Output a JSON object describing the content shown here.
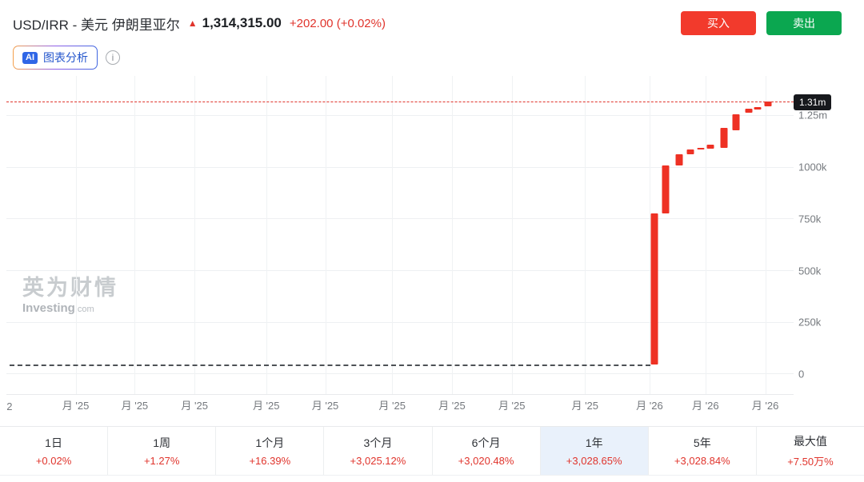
{
  "header": {
    "title": "USD/IRR - 美元 伊朗里亚尔",
    "arrow": "▲",
    "price": "1,314,315.00",
    "change": "+202.00 (+0.02%)",
    "buy_label": "买入",
    "sell_label": "卖出"
  },
  "toolbar": {
    "ai_badge": "AI",
    "ai_label": "图表分析",
    "info_icon": "i"
  },
  "watermark": {
    "cn": "英为财情",
    "en": "Investing",
    "en_suffix": ".com"
  },
  "colors": {
    "accent_red": "#e0342c",
    "buy_red": "#f23a2c",
    "sell_green": "#0ba750",
    "candle_red": "#ee3124",
    "tag_black": "#17191d",
    "selected_tab_blue": "#e9f1fb"
  },
  "chart_data": {
    "type": "candlestick",
    "title": "USD/IRR 1年走势",
    "ylim": [
      -100000,
      1440000
    ],
    "grid": true,
    "y_gridlines": [
      0,
      250000,
      500000,
      750000,
      1000000,
      1250000
    ],
    "y_axis_labels": [
      {
        "text": "1.25m",
        "value": 1250000
      },
      {
        "text": "1000k",
        "value": 1000000
      },
      {
        "text": "750k",
        "value": 750000
      },
      {
        "text": "500k",
        "value": 500000
      },
      {
        "text": "250k",
        "value": 250000
      },
      {
        "text": "0",
        "value": 0
      }
    ],
    "current_price": {
      "value": 1314315,
      "label": "1.31m"
    },
    "baseline": {
      "value": 42000,
      "x_start": 0.004,
      "x_end": 0.818
    },
    "x_ticks": [
      {
        "label": "2",
        "x": 0.004,
        "grid": false
      },
      {
        "label": "月 '25",
        "x": 0.088,
        "grid": true
      },
      {
        "label": "月 '25",
        "x": 0.163,
        "grid": true
      },
      {
        "label": "月 '25",
        "x": 0.239,
        "grid": true
      },
      {
        "label": "月 '25",
        "x": 0.33,
        "grid": true
      },
      {
        "label": "月 '25",
        "x": 0.405,
        "grid": true
      },
      {
        "label": "月 '25",
        "x": 0.49,
        "grid": true
      },
      {
        "label": "月 '25",
        "x": 0.566,
        "grid": true
      },
      {
        "label": "月 '25",
        "x": 0.642,
        "grid": true
      },
      {
        "label": "月 '25",
        "x": 0.735,
        "grid": true
      },
      {
        "label": "月 '26",
        "x": 0.817,
        "grid": true
      },
      {
        "label": "月 '26",
        "x": 0.888,
        "grid": true
      },
      {
        "label": "月 '26",
        "x": 0.964,
        "grid": true
      }
    ],
    "candles": [
      {
        "x": 0.823,
        "open": 43000,
        "close": 775000
      },
      {
        "x": 0.837,
        "open": 775000,
        "close": 1007000
      },
      {
        "x": 0.855,
        "open": 1007000,
        "close": 1062000
      },
      {
        "x": 0.869,
        "open": 1062000,
        "close": 1085000
      },
      {
        "x": 0.882,
        "open": 1085000,
        "close": 1091000
      },
      {
        "x": 0.894,
        "open": 1088000,
        "close": 1108000
      },
      {
        "x": 0.912,
        "open": 1093000,
        "close": 1189000
      },
      {
        "x": 0.927,
        "open": 1178000,
        "close": 1255000
      },
      {
        "x": 0.943,
        "open": 1262000,
        "close": 1282000
      },
      {
        "x": 0.954,
        "open": 1278000,
        "close": 1289000
      },
      {
        "x": 0.967,
        "open": 1293000,
        "close": 1314315
      }
    ]
  },
  "tabs": [
    {
      "label": "1日",
      "pct": "+0.02%",
      "selected": false
    },
    {
      "label": "1周",
      "pct": "+1.27%",
      "selected": false
    },
    {
      "label": "1个月",
      "pct": "+16.39%",
      "selected": false
    },
    {
      "label": "3个月",
      "pct": "+3,025.12%",
      "selected": false
    },
    {
      "label": "6个月",
      "pct": "+3,020.48%",
      "selected": false
    },
    {
      "label": "1年",
      "pct": "+3,028.65%",
      "selected": true
    },
    {
      "label": "5年",
      "pct": "+3,028.84%",
      "selected": false
    },
    {
      "label": "最大值",
      "pct": "+7.50万%",
      "selected": false
    }
  ]
}
